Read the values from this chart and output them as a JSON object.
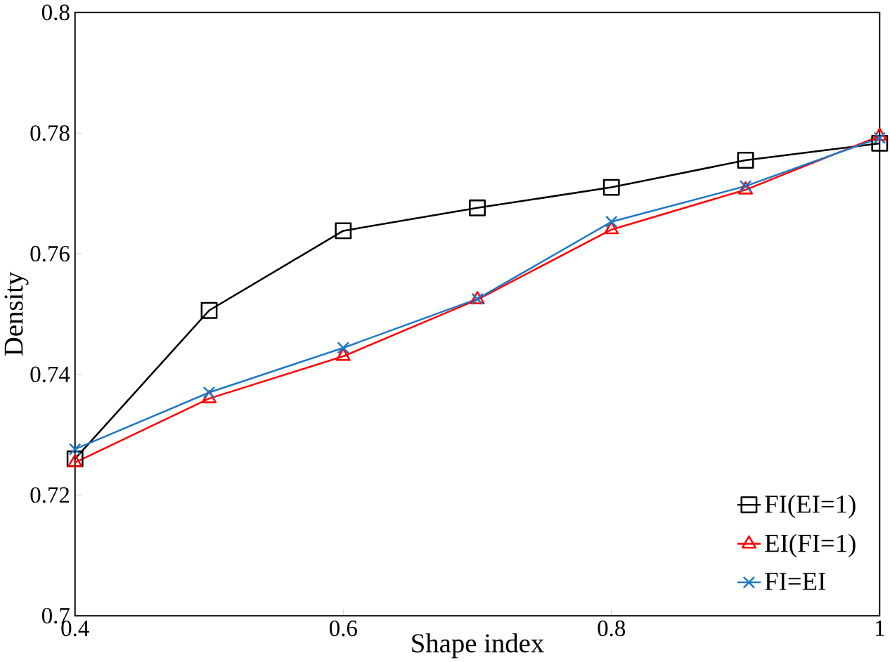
{
  "chart_data": {
    "type": "line",
    "xlabel": "Shape index",
    "ylabel": "Density",
    "x": [
      0.4,
      0.5,
      0.6,
      0.7,
      0.8,
      0.9,
      1.0
    ],
    "xlim": [
      0.4,
      1
    ],
    "xticks": [
      0.4,
      0.6,
      0.8,
      1
    ],
    "ylim": [
      0.7,
      0.8
    ],
    "yticks": [
      0.7,
      0.72,
      0.74,
      0.76,
      0.78,
      0.8
    ],
    "grid": false,
    "legend": "bottom right",
    "line_style": "solid",
    "series": [
      {
        "name": "FI(EI=1)",
        "color": "#000000",
        "marker": "square",
        "values": [
          0.726,
          0.7506,
          0.7638,
          0.7676,
          0.771,
          0.7755,
          0.7783
        ]
      },
      {
        "name": "EI(FI=1)",
        "color": "#ff0000",
        "marker": "triangle",
        "values": [
          0.7254,
          0.736,
          0.743,
          0.7524,
          0.764,
          0.7706,
          0.7795
        ]
      },
      {
        "name": "FI=EI",
        "color": "#1f77c4",
        "marker": "cross",
        "values": [
          0.7276,
          0.737,
          0.7444,
          0.7525,
          0.7653,
          0.7712,
          0.7792
        ]
      }
    ]
  }
}
